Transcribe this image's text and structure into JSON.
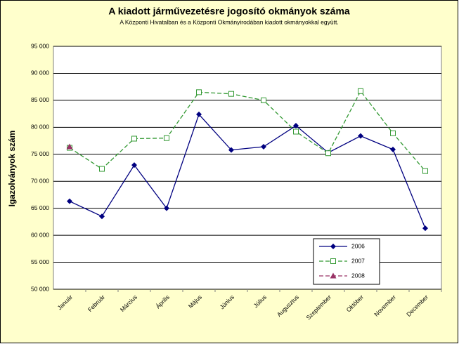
{
  "chart_data": {
    "type": "line",
    "title": "A  kiadott járművezetésre  jogosító okmányok száma",
    "subtitle": "A  Központi Hivatalban és a Központi Okmányirodában kiadott okmányokkal együtt.",
    "y_label": "Igazolványok szám",
    "categories": [
      "Január",
      "Február",
      "Március",
      "Április",
      "Május",
      "Június",
      "Július",
      "Augusztus",
      "Szeptember",
      "Október",
      "November",
      "December"
    ],
    "series": [
      {
        "name": "2006",
        "color": "#000080",
        "dash": false,
        "marker": "diamond",
        "values": [
          66300,
          63500,
          73000,
          65000,
          82400,
          75800,
          76400,
          80300,
          75300,
          78400,
          75900,
          61300
        ]
      },
      {
        "name": "2007",
        "color": "#339933",
        "dash": true,
        "marker": "square",
        "values": [
          76200,
          72300,
          77900,
          78000,
          86500,
          86200,
          85000,
          79200,
          75200,
          86700,
          78900,
          71900
        ]
      },
      {
        "name": "2008",
        "color": "#993366",
        "dash": true,
        "marker": "triangle",
        "values": [
          76400,
          null,
          null,
          null,
          null,
          null,
          null,
          null,
          null,
          null,
          null,
          null
        ]
      }
    ],
    "ylim": [
      50000,
      95000
    ],
    "yticks": [
      {
        "value": 50000,
        "label": "50 000"
      },
      {
        "value": 55000,
        "label": "55 000"
      },
      {
        "value": 60000,
        "label": "60 000"
      },
      {
        "value": 65000,
        "label": "65 000"
      },
      {
        "value": 70000,
        "label": "70 000"
      },
      {
        "value": 75000,
        "label": "75 000"
      },
      {
        "value": 80000,
        "label": "80 000"
      },
      {
        "value": 85000,
        "label": "85 000"
      },
      {
        "value": 90000,
        "label": "90 000"
      },
      {
        "value": 95000,
        "label": "95 000"
      }
    ],
    "grid": true,
    "legend": "lower right"
  }
}
